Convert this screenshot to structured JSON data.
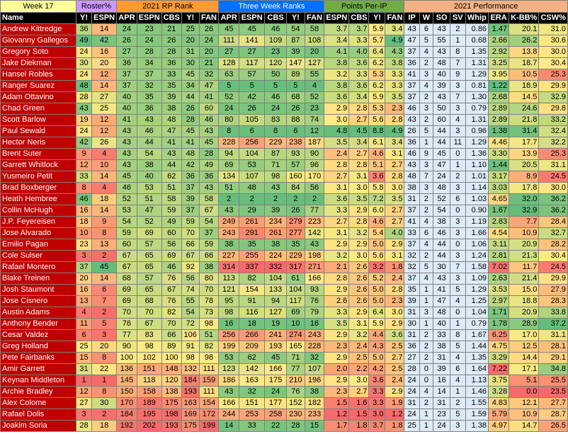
{
  "groups": [
    {
      "label": "Week 17",
      "span": 1,
      "color": "#ffff99",
      "text": "#000000"
    },
    {
      "label": "Roster%",
      "span": 2,
      "color": "#cc99ff",
      "text": "#000000"
    },
    {
      "label": "2021 RP Rank",
      "span": 5,
      "color": "#ff9933",
      "text": "#000000"
    },
    {
      "label": "Three Week Ranks",
      "span": 5,
      "color": "#0070ff",
      "text": "#ffffff"
    },
    {
      "label": "Points Per-IP",
      "span": 4,
      "color": "#70ad47",
      "text": "#000000"
    },
    {
      "label": "2021 Performance",
      "span": 8,
      "color": "#f4b183",
      "text": "#000000"
    }
  ],
  "columns": [
    "Name",
    "Y!",
    "ESPN",
    "APR",
    "ESPN",
    "CBS",
    "Y!",
    "FAN",
    "APR",
    "ESPN",
    "CBS",
    "Y!",
    "FAN",
    "ESPN",
    "CBS",
    "Y!",
    "FAN",
    "IP",
    "W",
    "SO",
    "SV",
    "Whip",
    "ERA",
    "K-BB%",
    "CSW%"
  ],
  "rows": [
    [
      "Andrew Kittredge",
      36,
      14,
      24,
      23,
      21,
      25,
      26,
      45,
      45,
      46,
      54,
      58,
      "3.7",
      "3.7",
      "5.9",
      "3.4",
      43,
      6,
      43,
      2,
      "0.86",
      "1.47",
      "20.1",
      "31.0"
    ],
    [
      "Giovanny Gallegos",
      49,
      42,
      26,
      24,
      26,
      20,
      24,
      111,
      141,
      109,
      87,
      108,
      "3.4",
      "3.3",
      "5.7",
      "4.9",
      47,
      5,
      55,
      1,
      "0.68",
      "2.66",
      "26.2",
      "30.6"
    ],
    [
      "Gregory Soto",
      24,
      16,
      27,
      28,
      28,
      31,
      20,
      27,
      27,
      23,
      39,
      20,
      "4.1",
      "4.0",
      "6.4",
      "4.3",
      37,
      4,
      43,
      8,
      "1.35",
      "2.92",
      "13.8",
      "30.0"
    ],
    [
      "Jake Diekman",
      30,
      20,
      36,
      34,
      36,
      30,
      21,
      128,
      117,
      120,
      147,
      127,
      "3.8",
      "3.6",
      "6.2",
      "3.8",
      36,
      2,
      48,
      7,
      "1.31",
      "3.25",
      "18.7",
      "30.4"
    ],
    [
      "Hansel Robles",
      24,
      12,
      37,
      37,
      33,
      45,
      32,
      63,
      57,
      50,
      89,
      55,
      "3.2",
      "3.3",
      "5.3",
      "3.3",
      41,
      3,
      40,
      9,
      "1.29",
      "3.95",
      "10.5",
      "25.3"
    ],
    [
      "Ranger Suarez",
      48,
      14,
      37,
      32,
      35,
      34,
      47,
      5,
      5,
      5,
      5,
      4,
      "3.8",
      "3.6",
      "6.2",
      "3.3",
      37,
      4,
      39,
      3,
      "0.81",
      "1.22",
      "18.9",
      "29.9"
    ],
    [
      "Adam Ottavino",
      28,
      27,
      40,
      35,
      39,
      44,
      41,
      52,
      42,
      46,
      68,
      52,
      "3.6",
      "3.4",
      "5.9",
      "3.5",
      37,
      2,
      43,
      7,
      "1.30",
      "2.68",
      "14.5",
      "32.9"
    ],
    [
      "Chad Green",
      43,
      25,
      40,
      36,
      38,
      26,
      60,
      24,
      26,
      24,
      26,
      23,
      "2.9",
      "2.8",
      "5.3",
      "2.3",
      46,
      3,
      50,
      3,
      "0.79",
      "2.89",
      "24.6",
      "29.8"
    ],
    [
      "Scott Barlow",
      19,
      12,
      41,
      43,
      48,
      28,
      46,
      80,
      105,
      83,
      88,
      74,
      "3.0",
      "2.7",
      "5.6",
      "2.8",
      43,
      2,
      60,
      4,
      "1.31",
      "2.89",
      "21.8",
      "33.2"
    ],
    [
      "Paul Sewald",
      24,
      12,
      43,
      46,
      47,
      45,
      43,
      8,
      6,
      8,
      6,
      12,
      "4.8",
      "4.5",
      "8.8",
      "4.9",
      26,
      5,
      44,
      3,
      "0.96",
      "1.38",
      "31.4",
      "32.4"
    ],
    [
      "Hector Neris",
      42,
      26,
      43,
      44,
      41,
      41,
      45,
      228,
      256,
      229,
      238,
      187,
      "3.5",
      "3.4",
      "6.1",
      "3.4",
      36,
      1,
      44,
      11,
      "1.29",
      "4.46",
      "17.7",
      "32.2"
    ],
    [
      "Brent Suter",
      9,
      4,
      43,
      54,
      43,
      48,
      28,
      94,
      104,
      87,
      93,
      90,
      "2.4",
      "2.7",
      "4.6",
      "3.1",
      46,
      9,
      45,
      0,
      "1.36",
      "3.30",
      "13.9",
      "25.3"
    ],
    [
      "Garrett Whitlock",
      12,
      10,
      43,
      38,
      44,
      42,
      49,
      69,
      53,
      71,
      57,
      96,
      "2.8",
      "2.8",
      "5.1",
      "2.7",
      43,
      3,
      47,
      1,
      "1.10",
      "1.44",
      "20.5",
      "31.1"
    ],
    [
      "Yusmeiro Petit",
      33,
      14,
      45,
      40,
      62,
      36,
      36,
      134,
      107,
      98,
      160,
      170,
      "2.7",
      "3.1",
      "3.6",
      "2.8",
      48,
      7,
      24,
      2,
      "1.01",
      "3.17",
      "8.9",
      "24.5"
    ],
    [
      "Brad Boxberger",
      8,
      4,
      46,
      53,
      51,
      37,
      43,
      51,
      48,
      43,
      84,
      56,
      "3.1",
      "3.0",
      "5.8",
      "3.0",
      38,
      3,
      48,
      3,
      "1.14",
      "3.03",
      "17.8",
      "30.0"
    ],
    [
      "Heath Hembree",
      46,
      18,
      52,
      51,
      58,
      39,
      58,
      2,
      2,
      2,
      2,
      2,
      "3.6",
      "3.5",
      "7.2",
      "3.5",
      31,
      2,
      52,
      6,
      "1.03",
      "4.65",
      "32.0",
      "36.2"
    ],
    [
      "Collin McHugh",
      16,
      14,
      53,
      47,
      59,
      37,
      67,
      43,
      29,
      39,
      26,
      77,
      "3.3",
      "2.9",
      "6.0",
      "2.7",
      37,
      2,
      54,
      0,
      "0.90",
      "1.67",
      "32.9",
      "36.2"
    ],
    [
      "J.P. Feyereisen",
      18,
      9,
      54,
      52,
      49,
      59,
      54,
      249,
      261,
      234,
      279,
      223,
      "2.7",
      "2.8",
      "4.6",
      "2.7",
      41,
      4,
      38,
      3,
      "1.19",
      "2.83",
      "7.7",
      "28.4"
    ],
    [
      "Jose Alvarado",
      10,
      8,
      59,
      69,
      60,
      70,
      37,
      243,
      291,
      261,
      277,
      142,
      "3.1",
      "3.2",
      "5.4",
      "4.0",
      33,
      6,
      46,
      3,
      "1.66",
      "4.54",
      "10.9",
      "32.7"
    ],
    [
      "Emilio Pagan",
      23,
      13,
      60,
      57,
      56,
      66,
      59,
      38,
      35,
      38,
      35,
      43,
      "2.9",
      "2.9",
      "5.0",
      "2.9",
      37,
      4,
      44,
      0,
      "1.06",
      "3.11",
      "20.9",
      "28.2"
    ],
    [
      "Cole Sulser",
      3,
      2,
      67,
      65,
      69,
      67,
      66,
      227,
      255,
      224,
      229,
      198,
      "3.2",
      "3.0",
      "5.6",
      "3.1",
      32,
      2,
      44,
      3,
      "1.24",
      "2.81",
      "21.3",
      "30.4"
    ],
    [
      "Rafael Montero",
      37,
      45,
      67,
      65,
      46,
      92,
      38,
      314,
      337,
      332,
      317,
      271,
      "2.1",
      "2.6",
      "3.2",
      "1.8",
      32,
      5,
      30,
      7,
      "1.58",
      "7.02",
      "11.7",
      "24.5"
    ],
    [
      "Blake Treinen",
      20,
      14,
      68,
      57,
      76,
      56,
      80,
      113,
      82,
      104,
      61,
      166,
      "2.8",
      "2.6",
      "5.2",
      "2.4",
      37,
      4,
      43,
      3,
      "1.09",
      "2.63",
      "21.4",
      "29.9"
    ],
    [
      "Josh Staumont",
      16,
      6,
      69,
      65,
      67,
      74,
      70,
      121,
      154,
      133,
      104,
      93,
      "2.9",
      "2.6",
      "5.0",
      "2.8",
      35,
      1,
      41,
      5,
      "1.29",
      "3.53",
      "15.0",
      "27.9"
    ],
    [
      "Jose Cisnero",
      13,
      7,
      69,
      68,
      76,
      55,
      78,
      95,
      91,
      94,
      117,
      76,
      "2.6",
      "2.6",
      "5.0",
      "2.3",
      39,
      1,
      47,
      4,
      "1.25",
      "2.97",
      "18.8",
      "28.3"
    ],
    [
      "Austin Adams",
      4,
      2,
      70,
      70,
      82,
      54,
      73,
      98,
      116,
      127,
      69,
      79,
      "3.3",
      "2.9",
      "6.4",
      "3.0",
      31,
      3,
      48,
      0,
      "1.04",
      "1.71",
      "20.9",
      "33.8"
    ],
    [
      "Anthony Bender",
      11,
      5,
      76,
      67,
      70,
      72,
      98,
      16,
      18,
      19,
      10,
      16,
      "3.5",
      "3.1",
      "5.9",
      "2.9",
      30,
      1,
      40,
      1,
      "0.79",
      "1.78",
      "28.9",
      "37.2"
    ],
    [
      "Cesar Valdez",
      6,
      3,
      77,
      83,
      66,
      106,
      51,
      256,
      266,
      241,
      274,
      243,
      "2.9",
      "3.2",
      "4.4",
      "3.6",
      31,
      2,
      33,
      8,
      "1.67",
      "6.25",
      "17.0",
      "31.1"
    ],
    [
      "Greg Holland",
      25,
      20,
      90,
      98,
      89,
      91,
      82,
      199,
      209,
      193,
      165,
      228,
      "2.3",
      "2.4",
      "4.3",
      "2.5",
      36,
      2,
      38,
      5,
      "1.44",
      "4.75",
      "12.5",
      "28.1"
    ],
    [
      "Pete Fairbanks",
      15,
      8,
      100,
      102,
      100,
      98,
      98,
      53,
      62,
      45,
      71,
      32,
      "2.9",
      "2.5",
      "5.0",
      "2.7",
      27,
      2,
      31,
      4,
      "1.35",
      "3.29",
      "14.4",
      "29.1"
    ],
    [
      "Amir Garrett",
      31,
      22,
      136,
      151,
      148,
      132,
      111,
      123,
      142,
      166,
      77,
      107,
      "2.0",
      "2.2",
      "4.2",
      "2.5",
      28,
      0,
      39,
      6,
      "1.64",
      "7.22",
      "17.1",
      "34.8"
    ],
    [
      "Keynan Middleton",
      1,
      1,
      145,
      118,
      120,
      184,
      159,
      186,
      163,
      175,
      210,
      196,
      "2.9",
      "3.0",
      "3.6",
      "2.4",
      24,
      0,
      16,
      4,
      "1.13",
      "3.75",
      "5.1",
      "25.5"
    ],
    [
      "Archie Bradley",
      12,
      8,
      150,
      158,
      138,
      193,
      111,
      43,
      32,
      24,
      76,
      38,
      "2.3",
      "2.7",
      "3.3",
      "2.9",
      24,
      4,
      14,
      1,
      "1.46",
      "3.28",
      "0.0",
      "23.5"
    ],
    [
      "Alex Colome",
      27,
      30,
      170,
      189,
      175,
      163,
      154,
      166,
      151,
      177,
      152,
      182,
      "1.5",
      "1.6",
      "3.3",
      "1.9",
      31,
      2,
      31,
      2,
      "1.55",
      "4.83",
      "12.1",
      "27.7"
    ],
    [
      "Rafael Dolis",
      3,
      2,
      184,
      195,
      198,
      169,
      172,
      244,
      253,
      258,
      230,
      233,
      "1.2",
      "1.5",
      "3.0",
      "1.2",
      24,
      1,
      23,
      5,
      "1.59",
      "5.79",
      "10.9",
      "28.7"
    ],
    [
      "Joakim Soria",
      28,
      18,
      192,
      202,
      193,
      175,
      199,
      14,
      33,
      22,
      28,
      15,
      "1.7",
      "1.8",
      "3.7",
      "1.8",
      25,
      1,
      24,
      3,
      "1.38",
      "4.97",
      "14.7",
      "26.5"
    ]
  ]
}
